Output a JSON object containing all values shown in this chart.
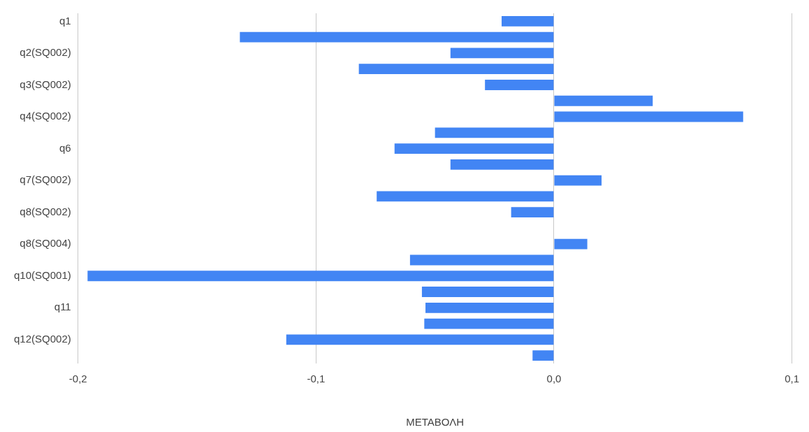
{
  "chart_data": {
    "type": "bar",
    "orientation": "horizontal",
    "xlabel": "ΜΕΤΑΒΟΛΗ",
    "categories": [
      "q1",
      null,
      "q2(SQ002)",
      null,
      "q3(SQ002)",
      null,
      "q4(SQ002)",
      null,
      "q6",
      null,
      "q7(SQ002)",
      null,
      "q8(SQ002)",
      null,
      "q8(SQ004)",
      null,
      "q10(SQ001)",
      null,
      "q11",
      null,
      "q12(SQ002)",
      null
    ],
    "values": [
      -0.022,
      -0.132,
      -0.0435,
      -0.082,
      -0.029,
      0.0415,
      0.0795,
      -0.05,
      -0.067,
      -0.0435,
      0.02,
      -0.0745,
      -0.018,
      null,
      0.014,
      -0.0605,
      -0.196,
      -0.0555,
      -0.054,
      -0.0545,
      -0.1125,
      -0.009
    ],
    "color": "#4285f4",
    "xlim": [
      -0.2,
      0.1
    ],
    "xticks": [
      {
        "value": -0.2,
        "label": "-0,2"
      },
      {
        "value": -0.1,
        "label": "-0,1"
      },
      {
        "value": 0,
        "label": "0,0"
      },
      {
        "value": 0.1,
        "label": "0,1"
      }
    ],
    "grid": "x",
    "legend": false
  }
}
